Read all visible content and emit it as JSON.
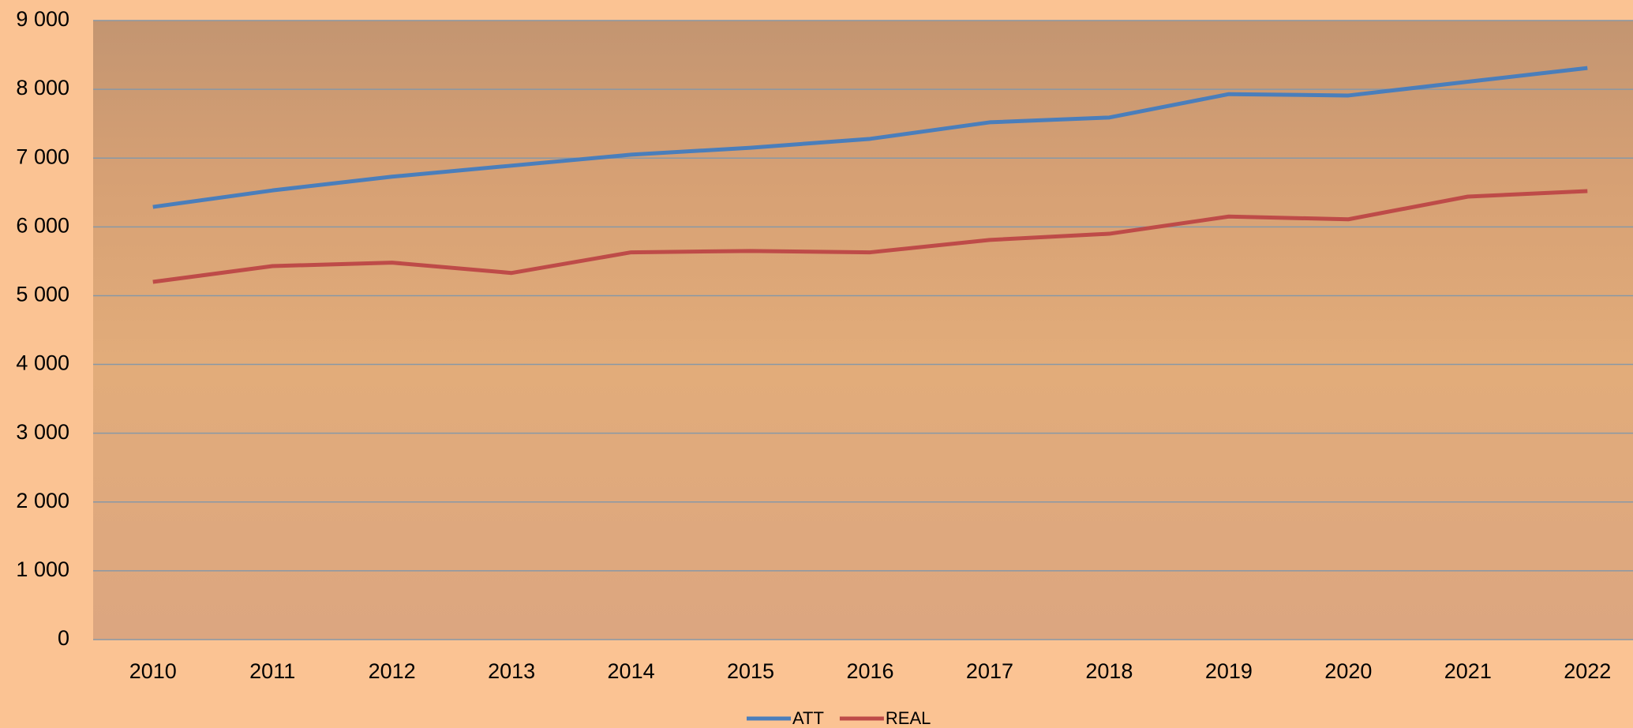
{
  "chart_data": {
    "type": "line",
    "categories": [
      "2010",
      "2011",
      "2012",
      "2013",
      "2014",
      "2015",
      "2016",
      "2017",
      "2018",
      "2019",
      "2020",
      "2021",
      "2022"
    ],
    "series": [
      {
        "name": "ATT",
        "color": "#4a7ebb",
        "values": [
          6290,
          6530,
          6730,
          6890,
          7050,
          7150,
          7280,
          7520,
          7590,
          7930,
          7910,
          8110,
          8310
        ]
      },
      {
        "name": "REAL",
        "color": "#be4b48",
        "values": [
          5200,
          5430,
          5480,
          5330,
          5630,
          5650,
          5630,
          5810,
          5900,
          6150,
          6110,
          6440,
          6520
        ]
      }
    ],
    "ylim": [
      0,
      9000
    ],
    "yticks": [
      0,
      {
        "value": 1000,
        "label": "1 000"
      },
      {
        "value": 2000,
        "label": "2 000"
      },
      {
        "value": 3000,
        "label": "3 000"
      },
      {
        "value": 4000,
        "label": "4 000"
      },
      {
        "value": 5000,
        "label": "5 000"
      },
      {
        "value": 6000,
        "label": "6 000"
      },
      {
        "value": 7000,
        "label": "7 000"
      },
      {
        "value": 8000,
        "label": "8 000"
      },
      {
        "value": 9000,
        "label": "9 000"
      }
    ],
    "grid": true,
    "legend": "bottom"
  }
}
